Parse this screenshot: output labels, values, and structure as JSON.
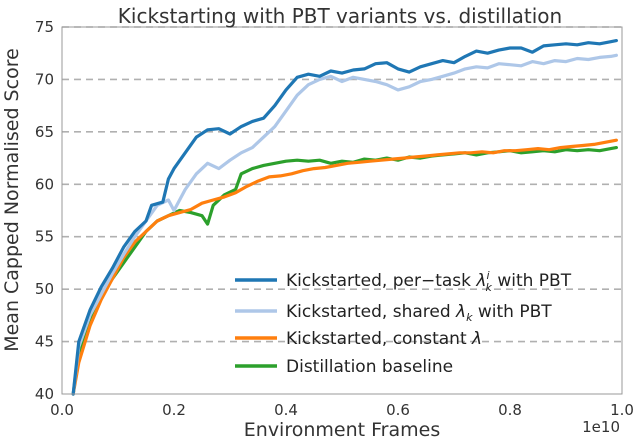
{
  "chart_data": {
    "type": "line",
    "title": "Kickstarting with PBT variants vs. distillation",
    "xlabel": "Environment Frames",
    "ylabel": "Mean Capped Normalised Score",
    "x_offset_label": "1e10",
    "xlim": [
      0.0,
      1.0
    ],
    "ylim": [
      40,
      75
    ],
    "x_ticks": [
      "0.0",
      "0.2",
      "0.4",
      "0.6",
      "0.8",
      "1.0"
    ],
    "y_ticks": [
      "40",
      "45",
      "50",
      "55",
      "60",
      "65",
      "70",
      "75"
    ],
    "grid": "horizontal-dashed",
    "legend_position": "lower-right",
    "series": [
      {
        "name": "Kickstarted, per−task λᵢₖ with PBT",
        "color": "#1f77b4",
        "points": [
          [
            0.02,
            40.0
          ],
          [
            0.03,
            45.0
          ],
          [
            0.05,
            48.0
          ],
          [
            0.07,
            50.2
          ],
          [
            0.09,
            52.0
          ],
          [
            0.11,
            54.0
          ],
          [
            0.13,
            55.5
          ],
          [
            0.15,
            56.5
          ],
          [
            0.16,
            58.0
          ],
          [
            0.18,
            58.3
          ],
          [
            0.19,
            60.5
          ],
          [
            0.2,
            61.5
          ],
          [
            0.22,
            63.0
          ],
          [
            0.24,
            64.5
          ],
          [
            0.26,
            65.2
          ],
          [
            0.28,
            65.3
          ],
          [
            0.3,
            64.8
          ],
          [
            0.32,
            65.5
          ],
          [
            0.34,
            66.0
          ],
          [
            0.36,
            66.3
          ],
          [
            0.38,
            67.5
          ],
          [
            0.4,
            69.0
          ],
          [
            0.42,
            70.2
          ],
          [
            0.44,
            70.5
          ],
          [
            0.46,
            70.3
          ],
          [
            0.48,
            70.8
          ],
          [
            0.5,
            70.6
          ],
          [
            0.52,
            70.9
          ],
          [
            0.54,
            71.0
          ],
          [
            0.56,
            71.5
          ],
          [
            0.58,
            71.6
          ],
          [
            0.6,
            71.0
          ],
          [
            0.62,
            70.7
          ],
          [
            0.64,
            71.2
          ],
          [
            0.66,
            71.5
          ],
          [
            0.68,
            71.8
          ],
          [
            0.7,
            71.6
          ],
          [
            0.72,
            72.2
          ],
          [
            0.74,
            72.7
          ],
          [
            0.76,
            72.5
          ],
          [
            0.78,
            72.8
          ],
          [
            0.8,
            73.0
          ],
          [
            0.82,
            73.0
          ],
          [
            0.84,
            72.6
          ],
          [
            0.86,
            73.2
          ],
          [
            0.88,
            73.3
          ],
          [
            0.9,
            73.4
          ],
          [
            0.92,
            73.3
          ],
          [
            0.94,
            73.5
          ],
          [
            0.96,
            73.4
          ],
          [
            0.98,
            73.6
          ],
          [
            0.99,
            73.7
          ]
        ]
      },
      {
        "name": "Kickstarted, shared λₖ with PBT",
        "color": "#aec7e8",
        "points": [
          [
            0.02,
            40.0
          ],
          [
            0.03,
            44.5
          ],
          [
            0.05,
            47.5
          ],
          [
            0.07,
            49.5
          ],
          [
            0.09,
            51.5
          ],
          [
            0.11,
            53.3
          ],
          [
            0.13,
            55.0
          ],
          [
            0.15,
            56.5
          ],
          [
            0.17,
            58.0
          ],
          [
            0.19,
            58.5
          ],
          [
            0.2,
            57.5
          ],
          [
            0.22,
            59.5
          ],
          [
            0.24,
            61.0
          ],
          [
            0.26,
            62.0
          ],
          [
            0.28,
            61.5
          ],
          [
            0.3,
            62.3
          ],
          [
            0.32,
            63.0
          ],
          [
            0.34,
            63.5
          ],
          [
            0.36,
            64.5
          ],
          [
            0.38,
            65.5
          ],
          [
            0.4,
            67.0
          ],
          [
            0.42,
            68.5
          ],
          [
            0.44,
            69.5
          ],
          [
            0.46,
            70.0
          ],
          [
            0.48,
            70.3
          ],
          [
            0.5,
            69.8
          ],
          [
            0.52,
            70.2
          ],
          [
            0.54,
            70.0
          ],
          [
            0.56,
            69.8
          ],
          [
            0.58,
            69.5
          ],
          [
            0.6,
            69.0
          ],
          [
            0.62,
            69.3
          ],
          [
            0.64,
            69.8
          ],
          [
            0.66,
            70.0
          ],
          [
            0.68,
            70.3
          ],
          [
            0.7,
            70.6
          ],
          [
            0.72,
            71.0
          ],
          [
            0.74,
            71.2
          ],
          [
            0.76,
            71.1
          ],
          [
            0.78,
            71.5
          ],
          [
            0.8,
            71.4
          ],
          [
            0.82,
            71.3
          ],
          [
            0.84,
            71.7
          ],
          [
            0.86,
            71.5
          ],
          [
            0.88,
            71.8
          ],
          [
            0.9,
            71.7
          ],
          [
            0.92,
            72.0
          ],
          [
            0.94,
            71.9
          ],
          [
            0.96,
            72.1
          ],
          [
            0.98,
            72.2
          ],
          [
            0.99,
            72.3
          ]
        ]
      },
      {
        "name": "Kickstarted, constant λ",
        "color": "#ff7f0e",
        "points": [
          [
            0.02,
            40.0
          ],
          [
            0.03,
            43.0
          ],
          [
            0.05,
            46.5
          ],
          [
            0.07,
            49.0
          ],
          [
            0.09,
            51.0
          ],
          [
            0.11,
            53.0
          ],
          [
            0.13,
            54.5
          ],
          [
            0.15,
            55.5
          ],
          [
            0.17,
            56.5
          ],
          [
            0.19,
            57.0
          ],
          [
            0.21,
            57.3
          ],
          [
            0.23,
            57.6
          ],
          [
            0.25,
            58.2
          ],
          [
            0.27,
            58.5
          ],
          [
            0.29,
            58.8
          ],
          [
            0.31,
            59.2
          ],
          [
            0.33,
            59.8
          ],
          [
            0.35,
            60.3
          ],
          [
            0.37,
            60.7
          ],
          [
            0.39,
            60.8
          ],
          [
            0.41,
            61.0
          ],
          [
            0.43,
            61.3
          ],
          [
            0.45,
            61.5
          ],
          [
            0.47,
            61.6
          ],
          [
            0.49,
            61.8
          ],
          [
            0.51,
            62.0
          ],
          [
            0.53,
            62.1
          ],
          [
            0.55,
            62.2
          ],
          [
            0.57,
            62.3
          ],
          [
            0.59,
            62.4
          ],
          [
            0.61,
            62.5
          ],
          [
            0.63,
            62.6
          ],
          [
            0.65,
            62.7
          ],
          [
            0.67,
            62.8
          ],
          [
            0.69,
            62.9
          ],
          [
            0.71,
            63.0
          ],
          [
            0.73,
            63.0
          ],
          [
            0.75,
            63.1
          ],
          [
            0.77,
            63.0
          ],
          [
            0.79,
            63.2
          ],
          [
            0.81,
            63.2
          ],
          [
            0.83,
            63.3
          ],
          [
            0.85,
            63.4
          ],
          [
            0.87,
            63.3
          ],
          [
            0.89,
            63.5
          ],
          [
            0.91,
            63.6
          ],
          [
            0.93,
            63.7
          ],
          [
            0.95,
            63.8
          ],
          [
            0.97,
            64.0
          ],
          [
            0.99,
            64.2
          ]
        ]
      },
      {
        "name": "Distillation baseline",
        "color": "#2ca02c",
        "points": [
          [
            0.02,
            40.0
          ],
          [
            0.03,
            44.0
          ],
          [
            0.05,
            47.0
          ],
          [
            0.07,
            49.5
          ],
          [
            0.09,
            51.0
          ],
          [
            0.11,
            52.5
          ],
          [
            0.13,
            54.0
          ],
          [
            0.15,
            55.5
          ],
          [
            0.17,
            56.5
          ],
          [
            0.19,
            57.0
          ],
          [
            0.21,
            57.5
          ],
          [
            0.23,
            57.3
          ],
          [
            0.25,
            57.0
          ],
          [
            0.26,
            56.2
          ],
          [
            0.27,
            58.0
          ],
          [
            0.29,
            59.0
          ],
          [
            0.31,
            59.5
          ],
          [
            0.32,
            61.0
          ],
          [
            0.34,
            61.5
          ],
          [
            0.36,
            61.8
          ],
          [
            0.38,
            62.0
          ],
          [
            0.4,
            62.2
          ],
          [
            0.42,
            62.3
          ],
          [
            0.44,
            62.2
          ],
          [
            0.46,
            62.3
          ],
          [
            0.48,
            62.0
          ],
          [
            0.5,
            62.2
          ],
          [
            0.52,
            62.1
          ],
          [
            0.54,
            62.4
          ],
          [
            0.56,
            62.3
          ],
          [
            0.58,
            62.5
          ],
          [
            0.6,
            62.3
          ],
          [
            0.62,
            62.6
          ],
          [
            0.64,
            62.5
          ],
          [
            0.66,
            62.7
          ],
          [
            0.68,
            62.8
          ],
          [
            0.7,
            62.9
          ],
          [
            0.72,
            63.0
          ],
          [
            0.74,
            62.8
          ],
          [
            0.76,
            63.0
          ],
          [
            0.78,
            63.1
          ],
          [
            0.8,
            63.2
          ],
          [
            0.82,
            63.0
          ],
          [
            0.84,
            63.1
          ],
          [
            0.86,
            63.2
          ],
          [
            0.88,
            63.1
          ],
          [
            0.9,
            63.3
          ],
          [
            0.92,
            63.2
          ],
          [
            0.94,
            63.3
          ],
          [
            0.96,
            63.2
          ],
          [
            0.98,
            63.4
          ],
          [
            0.99,
            63.5
          ]
        ]
      }
    ]
  }
}
